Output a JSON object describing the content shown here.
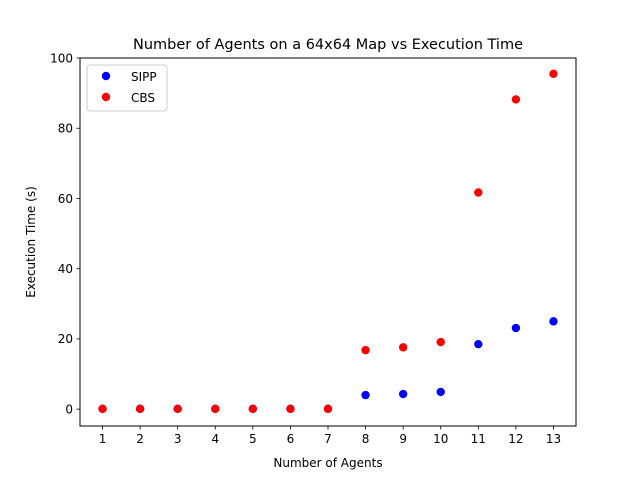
{
  "chart_data": {
    "type": "scatter",
    "title": "Number of Agents on a 64x64 Map vs Execution Time",
    "xlabel": "Number of Agents",
    "ylabel": "Execution Time (s)",
    "xlim": [
      0.4,
      13.6
    ],
    "ylim": [
      -4.8,
      100
    ],
    "xticks": [
      1,
      2,
      3,
      4,
      5,
      6,
      7,
      8,
      9,
      10,
      11,
      12,
      13
    ],
    "yticks": [
      0,
      20,
      40,
      60,
      80,
      100
    ],
    "grid": false,
    "legend_position": "top-left",
    "series": [
      {
        "name": "SIPP",
        "color": "#0000ff",
        "x": [
          1,
          2,
          3,
          4,
          5,
          6,
          7,
          8,
          9,
          10,
          11,
          12,
          13
        ],
        "y": [
          0.1,
          0.1,
          0.1,
          0.1,
          0.1,
          0.1,
          0.1,
          4.0,
          4.3,
          4.9,
          18.5,
          23.1,
          25.0
        ]
      },
      {
        "name": "CBS",
        "color": "#ff0000",
        "x": [
          1,
          2,
          3,
          4,
          5,
          6,
          7,
          8,
          9,
          10,
          11,
          12,
          13
        ],
        "y": [
          0.1,
          0.1,
          0.1,
          0.1,
          0.1,
          0.1,
          0.1,
          16.8,
          17.6,
          19.1,
          61.7,
          88.2,
          95.5
        ]
      }
    ]
  }
}
